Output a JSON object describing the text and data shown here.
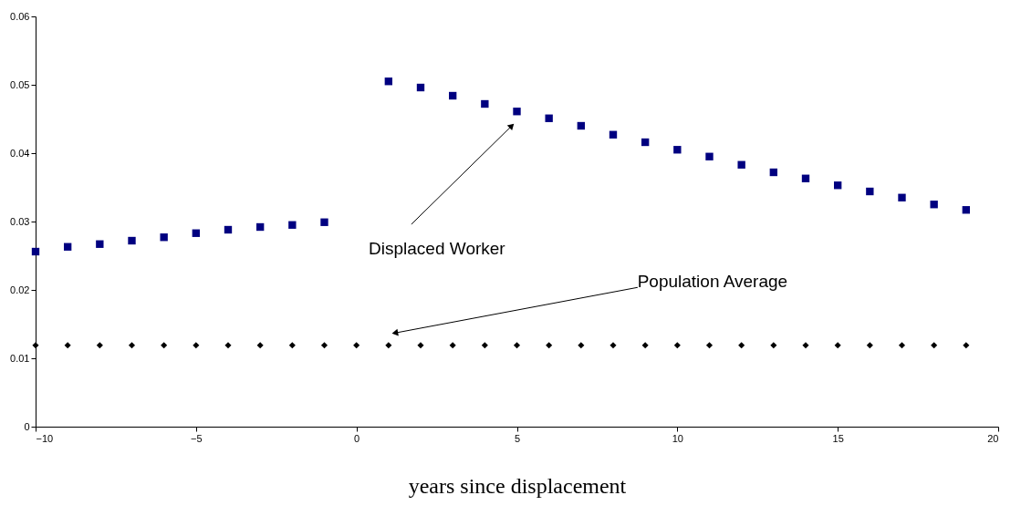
{
  "chart_data": {
    "type": "scatter",
    "xlabel": "years since displacement",
    "xlim": [
      -10,
      20
    ],
    "xticks": [
      -10,
      -5,
      0,
      5,
      10,
      15,
      20
    ],
    "ylim": [
      0,
      0.06
    ],
    "yticks": [
      0,
      0.01,
      0.02,
      0.03,
      0.04,
      0.05,
      0.06
    ],
    "grid": false,
    "series": [
      {
        "color": "#000080",
        "marker": "square",
        "x": [
          -10,
          -9,
          -8,
          -7,
          -6,
          -5,
          -4,
          -3,
          -2,
          -1,
          1,
          2,
          3,
          4,
          5,
          6,
          7,
          8,
          9,
          10,
          11,
          12,
          13,
          14,
          15,
          16,
          17,
          18,
          19
        ],
        "values": [
          0.0256,
          0.0263,
          0.0267,
          0.0272,
          0.0277,
          0.0283,
          0.0288,
          0.0292,
          0.0295,
          0.0299,
          0.0505,
          0.0496,
          0.0484,
          0.0472,
          0.0461,
          0.0451,
          0.044,
          0.0427,
          0.0416,
          0.0405,
          0.0395,
          0.0383,
          0.0372,
          0.0363,
          0.0353,
          0.0344,
          0.0335,
          0.0325,
          0.0317
        ]
      },
      {
        "color": "#000000",
        "marker": "diamond",
        "x": [
          -10,
          -9,
          -8,
          -7,
          -6,
          -5,
          -4,
          -3,
          -2,
          -1,
          0,
          1,
          2,
          3,
          4,
          5,
          6,
          7,
          8,
          9,
          10,
          11,
          12,
          13,
          14,
          15,
          16,
          17,
          18,
          19
        ],
        "values": [
          0.0119,
          0.0119,
          0.0119,
          0.0119,
          0.0119,
          0.0119,
          0.0119,
          0.0119,
          0.0119,
          0.0119,
          0.0119,
          0.0119,
          0.0119,
          0.0119,
          0.0119,
          0.0119,
          0.0119,
          0.0119,
          0.0119,
          0.0119,
          0.0119,
          0.0119,
          0.0119,
          0.0119,
          0.0119,
          0.0119,
          0.0119,
          0.0119,
          0.0119,
          0.0119
        ]
      }
    ],
    "annotations": [
      {
        "text": "Displaced Worker",
        "x": 4.84,
        "y": 0.044
      },
      {
        "text": "Population Average",
        "x": 1.2,
        "y": 0.0137
      }
    ]
  }
}
